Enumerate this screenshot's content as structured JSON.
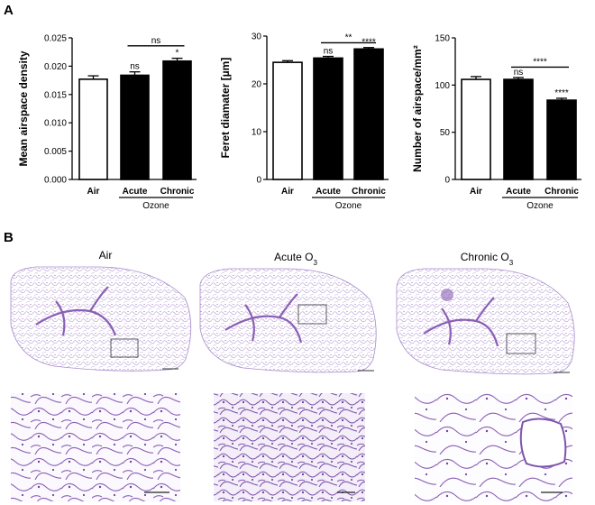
{
  "panel_labels": {
    "a": "A",
    "b": "B"
  },
  "chart_data": [
    {
      "type": "bar",
      "ylabel": "Mean airspace density",
      "categories": [
        "Air",
        "Acute",
        "Chronic"
      ],
      "group_label": "Ozone",
      "values": [
        0.0177,
        0.0184,
        0.0209
      ],
      "errors": [
        0.0006,
        0.0006,
        0.0005
      ],
      "fills": [
        "#ffffff",
        "#000000",
        "#000000"
      ],
      "ylim": [
        0,
        0.025
      ],
      "yticks": [
        0,
        0.005,
        0.01,
        0.015,
        0.02,
        0.025
      ],
      "ytick_labels": [
        "0.000",
        "0.005",
        "0.010",
        "0.015",
        "0.020",
        "0.025"
      ],
      "annotations": [
        {
          "text": "ns",
          "bar": 1
        },
        {
          "text": "*",
          "bar": 2
        }
      ],
      "brackets": [
        {
          "text": "ns",
          "from": 1,
          "to": 2,
          "level": 0.0236
        }
      ]
    },
    {
      "type": "bar",
      "ylabel": "Feret diamater [µm]",
      "categories": [
        "Air",
        "Acute",
        "Chronic"
      ],
      "group_label": "Ozone",
      "values": [
        24.5,
        25.4,
        27.3
      ],
      "errors": [
        0.35,
        0.35,
        0.3
      ],
      "fills": [
        "#ffffff",
        "#000000",
        "#000000"
      ],
      "ylim": [
        0,
        30
      ],
      "yticks": [
        0,
        10,
        20,
        30
      ],
      "ytick_labels": [
        "0",
        "10",
        "20",
        "30"
      ],
      "annotations": [
        {
          "text": "ns",
          "bar": 1
        },
        {
          "text": "****",
          "bar": 2
        }
      ],
      "brackets": [
        {
          "text": "**",
          "from": 1,
          "to": 2,
          "level": 28.6
        }
      ]
    },
    {
      "type": "bar",
      "ylabel": "Number of airspace/mm²",
      "categories": [
        "Air",
        "Acute",
        "Chronic"
      ],
      "group_label": "Ozone",
      "values": [
        106,
        106,
        84
      ],
      "errors": [
        3.0,
        2.0,
        2.0
      ],
      "fills": [
        "#ffffff",
        "#000000",
        "#000000"
      ],
      "ylim": [
        0,
        150
      ],
      "yticks": [
        0,
        50,
        100,
        150
      ],
      "ytick_labels": [
        "0",
        "50",
        "100",
        "150"
      ],
      "annotations": [
        {
          "text": "ns",
          "bar": 1
        },
        {
          "text": "****",
          "bar": 2
        }
      ],
      "brackets": [
        {
          "text": "****",
          "from": 1,
          "to": 2,
          "level": 119
        }
      ]
    }
  ],
  "micrographs": {
    "titles": [
      {
        "base": "Air",
        "sub": ""
      },
      {
        "base": "Acute O",
        "sub": "3"
      },
      {
        "base": "Chronic O",
        "sub": "3"
      }
    ],
    "tissue_color": "#8a5fb5",
    "tissue_light": "#d9c7ea"
  }
}
